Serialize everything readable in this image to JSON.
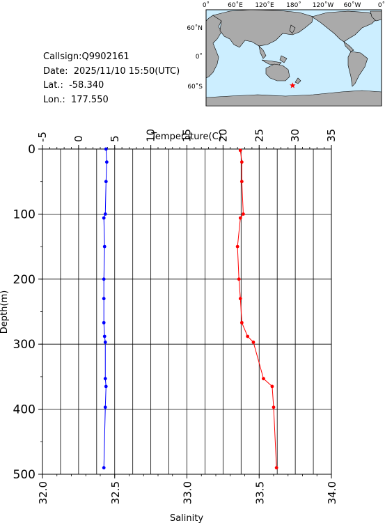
{
  "station": {
    "callsign": "Callsign:Q9902161",
    "date": "Date:  2025/11/10 15:50(UTC)",
    "lat": "Lat.:  -58.340",
    "lon": "Lon.:  177.550"
  },
  "map": {
    "top_labels": [
      "0˚",
      "60˚E",
      "120˚E",
      "180˚",
      "120˚W",
      "60˚W",
      "0˚"
    ],
    "left_labels": [
      "60˚N",
      "0˚",
      "60˚S"
    ],
    "marker": {
      "lat": -58.34,
      "lon": 177.55,
      "icon": "star-icon",
      "color": "#ff0000"
    },
    "ocean_color": "#cceeff",
    "land_color": "#aaaaaa"
  },
  "chart_data": {
    "type": "line",
    "top_axis": {
      "label": "Temperature(C)",
      "range": [
        -5,
        35
      ],
      "ticks": [
        "-5",
        "0",
        "5",
        "10",
        "15",
        "20",
        "25",
        "30",
        "35"
      ]
    },
    "bottom_axis": {
      "label": "Salinity",
      "range": [
        32.0,
        34.0
      ],
      "ticks": [
        "32.0",
        "32.5",
        "33.0",
        "33.5",
        "34.0"
      ]
    },
    "left_axis": {
      "label": "Depth(m)",
      "range": [
        0,
        500
      ],
      "reversed": true,
      "ticks": [
        "0",
        "100",
        "200",
        "300",
        "400",
        "500"
      ]
    },
    "grid": true,
    "series": [
      {
        "name": "Temperature",
        "axis": "top",
        "color": "#0000ff",
        "points": [
          [
            3.8,
            0
          ],
          [
            3.9,
            20
          ],
          [
            3.8,
            50
          ],
          [
            3.7,
            100
          ],
          [
            3.5,
            106
          ],
          [
            3.6,
            150
          ],
          [
            3.5,
            200
          ],
          [
            3.5,
            230
          ],
          [
            3.5,
            267
          ],
          [
            3.6,
            288
          ],
          [
            3.7,
            297
          ],
          [
            3.7,
            353
          ],
          [
            3.8,
            365
          ],
          [
            3.7,
            397
          ],
          [
            3.5,
            490
          ]
        ]
      },
      {
        "name": "Salinity",
        "axis": "bottom",
        "color": "#ff0000",
        "points": [
          [
            33.37,
            2
          ],
          [
            33.38,
            20
          ],
          [
            33.38,
            50
          ],
          [
            33.39,
            100
          ],
          [
            33.37,
            106
          ],
          [
            33.35,
            150
          ],
          [
            33.36,
            200
          ],
          [
            33.37,
            230
          ],
          [
            33.38,
            267
          ],
          [
            33.42,
            288
          ],
          [
            33.46,
            297
          ],
          [
            33.53,
            353
          ],
          [
            33.59,
            365
          ],
          [
            33.6,
            397
          ],
          [
            33.62,
            490
          ]
        ]
      }
    ]
  }
}
